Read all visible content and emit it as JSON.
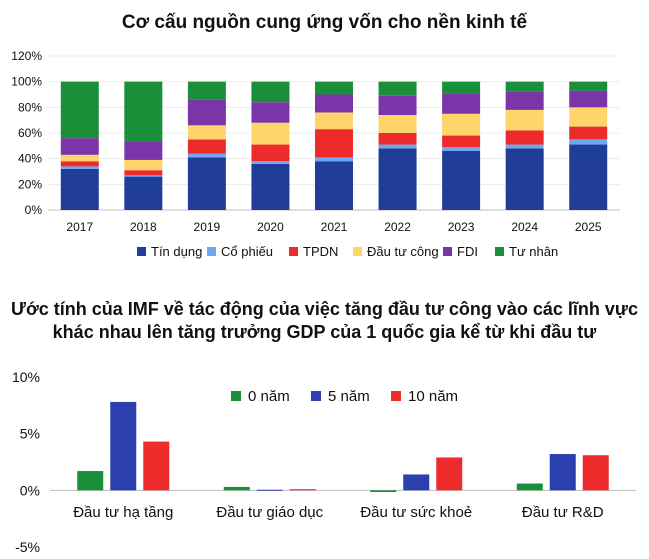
{
  "chart_data": [
    {
      "type": "bar",
      "stacked": true,
      "title": "Cơ cấu nguồn cung ứng vốn cho nền kinh tế",
      "categories": [
        "2017",
        "2018",
        "2019",
        "2020",
        "2021",
        "2022",
        "2023",
        "2024",
        "2025"
      ],
      "y_ticks": [
        "0%",
        "20%",
        "40%",
        "60%",
        "80%",
        "100%",
        "120%"
      ],
      "ylim": [
        0,
        120
      ],
      "legend_position": "bottom",
      "series": [
        {
          "name": "Tín dụng",
          "color": "#1f3d99",
          "values": [
            32,
            26,
            41,
            36,
            38,
            48,
            46,
            48,
            51
          ]
        },
        {
          "name": "Cổ phiếu",
          "color": "#6fa8f0",
          "values": [
            2,
            1,
            3,
            2,
            3,
            3,
            3,
            3,
            4
          ]
        },
        {
          "name": "TPDN",
          "color": "#ee2b2b",
          "values": [
            4,
            4,
            11,
            13,
            22,
            9,
            9,
            11,
            10
          ]
        },
        {
          "name": "Đầu tư công",
          "color": "#ffd46b",
          "values": [
            5,
            8,
            11,
            17,
            13,
            14,
            17,
            16,
            15
          ]
        },
        {
          "name": "FDI",
          "color": "#7a35a8",
          "values": [
            13,
            14,
            20,
            16,
            14,
            15,
            16,
            14,
            13
          ]
        },
        {
          "name": "Tư nhân",
          "color": "#1a8f3a",
          "values": [
            44,
            47,
            14,
            16,
            10,
            11,
            9,
            8,
            7
          ]
        }
      ]
    },
    {
      "type": "bar",
      "title": "Ước tính của IMF về tác động của việc tăng đầu tư công vào các lĩnh vực khác nhau lên tăng trưởng GDP của 1 quốc gia kể từ khi đầu tư",
      "categories": [
        "Đầu tư hạ tầng",
        "Đầu tư giáo dục",
        "Đầu tư sức khoẻ",
        "Đầu tư R&D"
      ],
      "y_ticks": [
        "-5%",
        "0%",
        "5%",
        "10%"
      ],
      "ylim": [
        -5,
        10
      ],
      "legend_position": "top",
      "series": [
        {
          "name": "0 năm",
          "color": "#1a8f3a",
          "values": [
            1.7,
            0.3,
            -0.15,
            0.6
          ]
        },
        {
          "name": "5 năm",
          "color": "#2b3fae",
          "values": [
            7.8,
            0.05,
            1.4,
            3.2
          ]
        },
        {
          "name": "10 năm",
          "color": "#ee2b2b",
          "values": [
            4.3,
            0.1,
            2.9,
            3.1
          ]
        }
      ]
    }
  ]
}
